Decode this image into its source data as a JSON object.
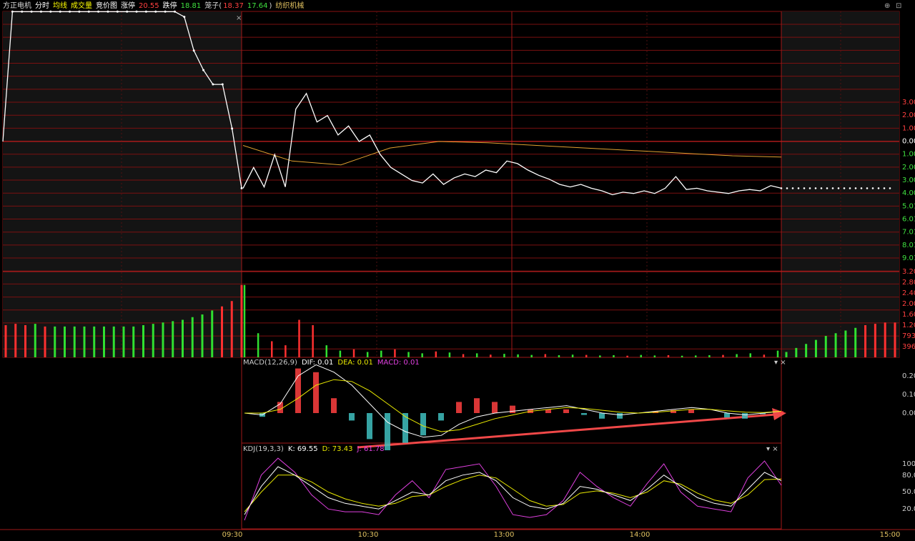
{
  "header": {
    "items": [
      {
        "text": "方正电机",
        "color": "#d8d8d8"
      },
      {
        "text": "分时",
        "color": "#ffffff"
      },
      {
        "text": "均线",
        "color": "#ffff00"
      },
      {
        "text": "成交量",
        "color": "#ffff00"
      },
      {
        "text": "竞价图",
        "color": "#ffffff"
      },
      {
        "text": "涨停",
        "color": "#ffffff"
      },
      {
        "text": "20.55",
        "color": "#ff4040"
      },
      {
        "text": "跌停",
        "color": "#ffffff"
      },
      {
        "text": "18.81",
        "color": "#40e040"
      },
      {
        "text": "笼子(",
        "color": "#d8d8d8"
      },
      {
        "text": "18.37",
        "color": "#ff4040"
      },
      {
        "text": "17.64",
        "color": "#40e040"
      },
      {
        "text": ")",
        "color": "#d8d8d8"
      },
      {
        "text": "纺织机械",
        "color": "#e0c060"
      }
    ]
  },
  "price_panel": {
    "axis_labels": [
      "3.00",
      "2.00",
      "1.00",
      "0.00",
      "1.00",
      "2.00",
      "3.00",
      "4.00",
      "5.01",
      "6.01",
      "7.01",
      "8.01",
      "9.01"
    ],
    "auction": [
      0,
      10,
      10,
      10,
      10,
      10,
      10,
      10,
      10,
      10,
      10,
      10,
      10,
      10,
      10,
      10,
      10,
      10,
      10,
      9.6,
      7,
      5.5,
      4.4,
      4.4,
      1,
      -3.6
    ],
    "session": [
      -3.6,
      -2,
      -3.5,
      -1,
      -3.5,
      2.5,
      3.7,
      1.5,
      2,
      0.5,
      1.2,
      0,
      0.5,
      -1,
      -2,
      -2.5,
      -3,
      -3.2,
      -2.5,
      -3.3,
      -2.8,
      -2.5,
      -2.7,
      -2.2,
      -2.4,
      -1.5,
      -1.7,
      -2.2,
      -2.6,
      -2.9,
      -3.3,
      -3.5,
      -3.3,
      -3.6,
      -3.8,
      -4.1,
      -3.9,
      -4,
      -3.8,
      -4,
      -3.6,
      -2.7,
      -3.7,
      -3.6,
      -3.8,
      -3.9,
      -4,
      -3.8,
      -3.7,
      -3.8,
      -3.4,
      -3.6
    ],
    "average": [
      -0.3,
      -1.5,
      -1.8,
      -0.5,
      0,
      -0.1,
      -0.3,
      -0.5,
      -0.7,
      -0.9,
      -1.1,
      -1.2
    ]
  },
  "volume_panel": {
    "axis_labels": [
      "3.20",
      "2.80",
      "2.40",
      "2.00",
      "1.60",
      "1.20",
      "793",
      "396"
    ],
    "auction": [
      1200,
      1250,
      1200,
      1250,
      1150,
      1150,
      1150,
      1150,
      1150,
      1150,
      1150,
      1150,
      1150,
      1150,
      1200,
      1250,
      1300,
      1350,
      1400,
      1500,
      1600,
      1750,
      1900,
      2100,
      2700
    ],
    "auction_colors": [
      "r",
      "r",
      "r",
      "g",
      "r",
      "g",
      "g",
      "g",
      "g",
      "g",
      "g",
      "g",
      "g",
      "g",
      "g",
      "g",
      "g",
      "g",
      "g",
      "g",
      "g",
      "g",
      "r",
      "r",
      "r"
    ],
    "session": [
      2700,
      900,
      600,
      450,
      1400,
      1200,
      450,
      250,
      300,
      200,
      250,
      300,
      200,
      150,
      220,
      180,
      120,
      150,
      100,
      130,
      110,
      90,
      120,
      80,
      100,
      90,
      70,
      80,
      60,
      90,
      70,
      80,
      60,
      70,
      80,
      90,
      120,
      150,
      100,
      250
    ],
    "session_colors": [
      "g",
      "g",
      "r",
      "r",
      "r",
      "r",
      "g",
      "g",
      "r",
      "g",
      "g",
      "r",
      "g",
      "g",
      "r",
      "g",
      "r",
      "g",
      "r",
      "g",
      "g",
      "g",
      "r",
      "g",
      "g",
      "r",
      "g",
      "g",
      "r",
      "g",
      "g",
      "r",
      "g",
      "g",
      "g",
      "r",
      "g",
      "g",
      "r",
      "g"
    ],
    "post": [
      200,
      350,
      500,
      650,
      800,
      900,
      1000,
      1100,
      1200,
      1250,
      1300,
      1300
    ],
    "post_colors": [
      "g",
      "g",
      "g",
      "g",
      "g",
      "g",
      "g",
      "g",
      "r",
      "r",
      "r",
      "r"
    ]
  },
  "macd_panel": {
    "title": "MACD(12,26,9)",
    "dif": "DIF: 0.01",
    "dea": "DEA: 0.01",
    "macd": "MACD: 0.01",
    "axis_labels": [
      "0.20",
      "0.10",
      "0.00"
    ],
    "dif_values": [
      0,
      -0.01,
      0.05,
      0.2,
      0.26,
      0.22,
      0.15,
      0.05,
      -0.05,
      -0.1,
      -0.13,
      -0.12,
      -0.06,
      -0.02,
      0,
      0.01,
      0.02,
      0.03,
      0.04,
      0.02,
      0,
      -0.01,
      0,
      0.01,
      0.02,
      0.03,
      0.02,
      0,
      -0.01,
      0,
      0.01
    ],
    "dea_values": [
      0,
      0,
      0.02,
      0.08,
      0.15,
      0.18,
      0.17,
      0.12,
      0.05,
      -0.02,
      -0.07,
      -0.1,
      -0.09,
      -0.06,
      -0.03,
      -0.01,
      0.01,
      0.02,
      0.03,
      0.025,
      0.015,
      0.005,
      0,
      0.005,
      0.012,
      0.02,
      0.02,
      0.012,
      0.005,
      0.003,
      0.01
    ],
    "hist_values": [
      0,
      -0.02,
      0.06,
      0.24,
      0.22,
      0.08,
      -0.04,
      -0.14,
      -0.2,
      -0.16,
      -0.12,
      -0.04,
      0.06,
      0.08,
      0.06,
      0.04,
      0.02,
      0.02,
      0.02,
      -0.01,
      -0.03,
      -0.03,
      0,
      0.01,
      0.016,
      0.02,
      0,
      -0.024,
      -0.03,
      -0.006,
      0.01
    ]
  },
  "kdj_panel": {
    "title": "KDJ(19,3,3)",
    "k": "K: 69.55",
    "d": "D: 73.43",
    "j": "J: 61.78",
    "axis_labels": [
      "100",
      "80.00",
      "50.00",
      "20.00"
    ],
    "k_values": [
      10,
      60,
      95,
      80,
      60,
      40,
      30,
      25,
      20,
      35,
      50,
      45,
      70,
      80,
      85,
      70,
      40,
      25,
      20,
      30,
      60,
      55,
      45,
      35,
      55,
      80,
      60,
      40,
      30,
      25,
      55,
      85,
      70
    ],
    "d_values": [
      15,
      50,
      80,
      80,
      68,
      50,
      38,
      30,
      25,
      30,
      42,
      45,
      60,
      72,
      80,
      75,
      55,
      35,
      25,
      28,
      48,
      52,
      48,
      40,
      50,
      70,
      64,
      48,
      36,
      30,
      45,
      72,
      73
    ],
    "j_values": [
      0,
      80,
      110,
      85,
      45,
      20,
      15,
      15,
      10,
      45,
      70,
      40,
      90,
      95,
      100,
      60,
      10,
      5,
      10,
      35,
      85,
      60,
      40,
      25,
      65,
      100,
      50,
      25,
      20,
      15,
      75,
      105,
      62
    ]
  },
  "time_axis": [
    "09:30",
    "10:30",
    "13:00",
    "14:00",
    "15:00"
  ]
}
